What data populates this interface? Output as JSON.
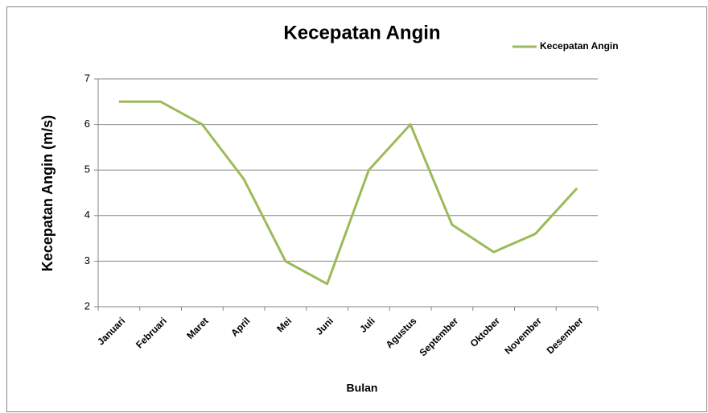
{
  "chart_data": {
    "type": "line",
    "title": "Kecepatan Angin",
    "x_label": "Bulan",
    "y_label": "Kecepatan Angin (m/s)",
    "categories": [
      "Januari",
      "Februari",
      "Maret",
      "April",
      "Mei",
      "Juni",
      "Juli",
      "Agustus",
      "September",
      "Oktober",
      "November",
      "Desember"
    ],
    "series": [
      {
        "name": "Kecepatan Angin",
        "color": "#9bbb59",
        "values": [
          6.5,
          6.5,
          6.0,
          4.8,
          3.0,
          2.5,
          5.0,
          6.0,
          3.8,
          3.2,
          3.6,
          4.6
        ]
      }
    ],
    "ylim": [
      2,
      7
    ],
    "yticks": [
      2,
      3,
      4,
      5,
      6,
      7
    ],
    "grid": true,
    "legend": "top-right"
  }
}
